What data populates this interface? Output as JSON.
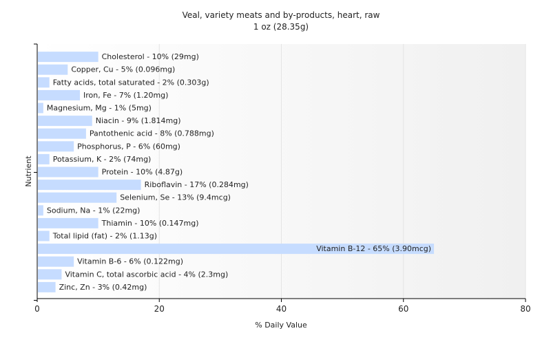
{
  "chart_data": {
    "type": "bar",
    "orientation": "horizontal",
    "title": "Veal, variety meats and by-products, heart, raw",
    "subtitle": "1 oz (28.35g)",
    "xlabel": "% Daily Value",
    "ylabel": "Nutrient",
    "xlim": [
      0,
      80
    ],
    "xticks": [
      0,
      20,
      40,
      60,
      80
    ],
    "grid": true,
    "legend": "none",
    "bar_color": "#c6dcff",
    "categories": [
      "Cholesterol",
      "Copper, Cu",
      "Fatty acids, total saturated",
      "Iron, Fe",
      "Magnesium, Mg",
      "Niacin",
      "Pantothenic acid",
      "Phosphorus, P",
      "Potassium, K",
      "Protein",
      "Riboflavin",
      "Selenium, Se",
      "Sodium, Na",
      "Thiamin",
      "Total lipid (fat)",
      "Vitamin B-12",
      "Vitamin B-6",
      "Vitamin C, total ascorbic acid",
      "Zinc, Zn"
    ],
    "values": [
      10,
      5,
      2,
      7,
      1,
      9,
      8,
      6,
      2,
      10,
      17,
      13,
      1,
      10,
      2,
      65,
      6,
      4,
      3
    ],
    "labels": [
      "Cholesterol - 10% (29mg)",
      "Copper, Cu - 5% (0.096mg)",
      "Fatty acids, total saturated - 2% (0.303g)",
      "Iron, Fe - 7% (1.20mg)",
      "Magnesium, Mg - 1% (5mg)",
      "Niacin - 9% (1.814mg)",
      "Pantothenic acid - 8% (0.788mg)",
      "Phosphorus, P - 6% (60mg)",
      "Potassium, K - 2% (74mg)",
      "Protein - 10% (4.87g)",
      "Riboflavin - 17% (0.284mg)",
      "Selenium, Se - 13% (9.4mcg)",
      "Sodium, Na - 1% (22mg)",
      "Thiamin - 10% (0.147mg)",
      "Total lipid (fat) - 2% (1.13g)",
      "Vitamin B-12 - 65% (3.90mcg)",
      "Vitamin B-6 - 6% (0.122mg)",
      "Vitamin C, total ascorbic acid - 4% (2.3mg)",
      "Zinc, Zn - 3% (0.42mg)"
    ]
  }
}
